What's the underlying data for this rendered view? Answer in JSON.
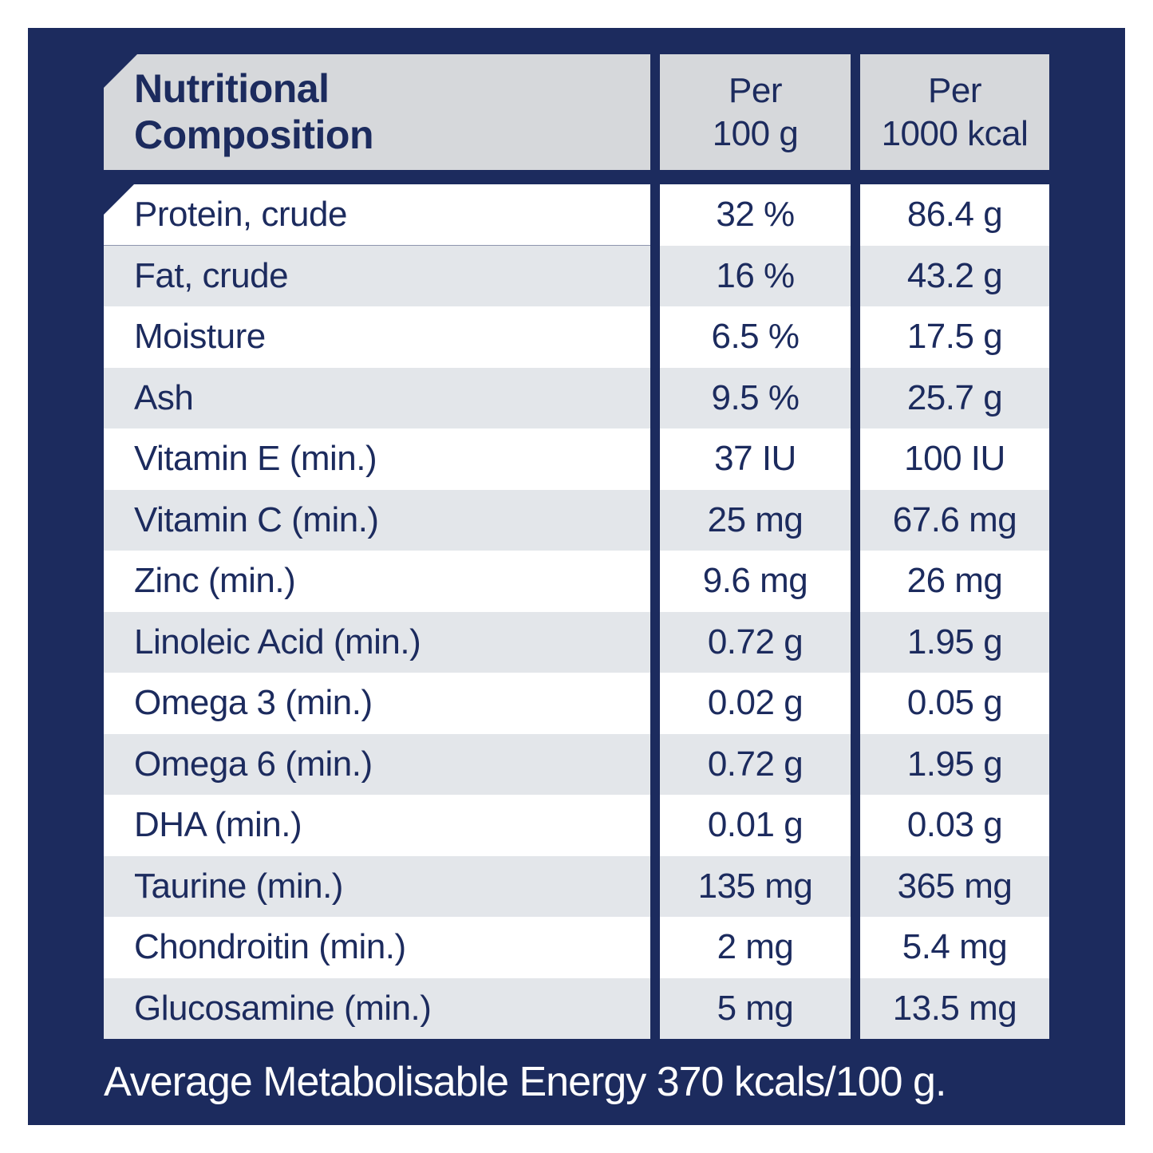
{
  "colors": {
    "panel_navy": "#1c2b5e",
    "header_gray": "#d6d8db",
    "row_stripe_gray": "#e3e6ea",
    "row_white": "#ffffff",
    "text_navy": "#1c2b5e",
    "footer_text_white": "#ffffff"
  },
  "header": {
    "title_line1": "Nutritional",
    "title_line2": "Composition",
    "per_100g_line1": "Per",
    "per_100g_line2": "100 g",
    "per_1000kcal_line1": "Per",
    "per_1000kcal_line2": "1000 kcal"
  },
  "rows": [
    {
      "label": "Protein, crude",
      "per_100g": "32 %",
      "per_1000_kcal": "86.4 g"
    },
    {
      "label": "Fat, crude",
      "per_100g": "16 %",
      "per_1000_kcal": "43.2 g"
    },
    {
      "label": "Moisture",
      "per_100g": "6.5 %",
      "per_1000_kcal": "17.5 g"
    },
    {
      "label": "Ash",
      "per_100g": "9.5 %",
      "per_1000_kcal": "25.7 g"
    },
    {
      "label": "Vitamin E (min.)",
      "per_100g": "37 IU",
      "per_1000_kcal": "100 IU"
    },
    {
      "label": "Vitamin C (min.)",
      "per_100g": "25 mg",
      "per_1000_kcal": "67.6 mg"
    },
    {
      "label": "Zinc (min.)",
      "per_100g": "9.6 mg",
      "per_1000_kcal": "26 mg"
    },
    {
      "label": "Linoleic Acid (min.)",
      "per_100g": "0.72 g",
      "per_1000_kcal": "1.95 g"
    },
    {
      "label": "Omega 3 (min.)",
      "per_100g": "0.02 g",
      "per_1000_kcal": "0.05 g"
    },
    {
      "label": "Omega 6 (min.)",
      "per_100g": "0.72 g",
      "per_1000_kcal": "1.95 g"
    },
    {
      "label": "DHA (min.)",
      "per_100g": "0.01 g",
      "per_1000_kcal": "0.03 g"
    },
    {
      "label": "Taurine (min.)",
      "per_100g": "135 mg",
      "per_1000_kcal": "365 mg"
    },
    {
      "label": "Chondroitin (min.)",
      "per_100g": "2 mg",
      "per_1000_kcal": "5.4 mg"
    },
    {
      "label": "Glucosamine (min.)",
      "per_100g": "5 mg",
      "per_1000_kcal": "13.5 mg"
    }
  ],
  "footer": {
    "text": "Average Metabolisable Energy 370 kcals/100 g."
  }
}
